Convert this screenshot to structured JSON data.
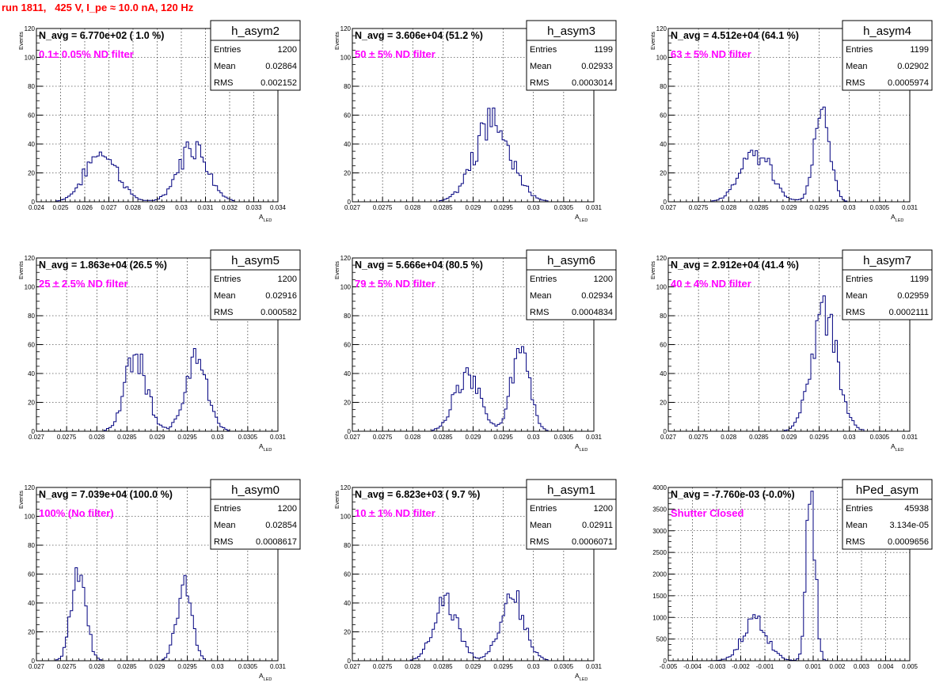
{
  "header": {
    "run_title": "run 1811,   425 V, I_pe ≈ 10.0 nA, 120 Hz"
  },
  "stats_labels": {
    "entries": "Entries",
    "mean": "Mean",
    "rms": "RMS"
  },
  "colors": {
    "title": "#ff0000",
    "filter_label": "#ff00ff",
    "hist_line": "#00007f",
    "grid": "#000000"
  },
  "chart_data": [
    {
      "type": "bar",
      "name": "h_asym2",
      "navg": "N_avg = 6.770e+02 ( 1.0 %)",
      "filter": "0.1± 0.05% ND filter",
      "entries": "1200",
      "mean": "0.02864",
      "rms": "0.002152",
      "ylabel": "Events",
      "xlabel": "A",
      "xlabel_sub": "LED",
      "xlim": [
        0.024,
        0.034
      ],
      "ylim": [
        0,
        120
      ],
      "grid": true,
      "xticks": [
        "0.024",
        "0.025",
        "0.026",
        "0.027",
        "0.028",
        "0.029",
        "0.03",
        "0.031",
        "0.032",
        "0.033",
        "0.034"
      ],
      "yticks": [
        "0",
        "20",
        "40",
        "60",
        "80",
        "100",
        "120"
      ],
      "peaks": [
        {
          "center": 0.0267,
          "sigma": 0.00065,
          "amplitude": 35
        },
        {
          "center": 0.0305,
          "sigma": 0.0006,
          "amplitude": 40
        }
      ]
    },
    {
      "type": "bar",
      "name": "h_asym3",
      "navg": "N_avg = 3.606e+04 (51.2 %)",
      "filter": " 50 ± 5% ND filter",
      "entries": "1199",
      "mean": "0.02933",
      "rms": "0.0003014",
      "ylabel": "Events",
      "xlabel": "A",
      "xlabel_sub": "LED",
      "xlim": [
        0.027,
        0.031
      ],
      "ylim": [
        0,
        120
      ],
      "grid": true,
      "xticks": [
        "0.027",
        "0.0275",
        "0.028",
        "0.0285",
        "0.029",
        "0.0295",
        "0.03",
        "0.0305",
        "0.031"
      ],
      "yticks": [
        "0",
        "20",
        "40",
        "60",
        "80",
        "100",
        "120"
      ],
      "peaks": [
        {
          "center": 0.02933,
          "sigma": 0.0003,
          "amplitude": 55
        }
      ]
    },
    {
      "type": "bar",
      "name": "h_asym4",
      "navg": "N_avg = 4.512e+04 (64.1 %)",
      "filter": " 63 ± 5% ND filter",
      "entries": "1199",
      "mean": "0.02902",
      "rms": "0.0005974",
      "ylabel": "Events",
      "xlabel": "A",
      "xlabel_sub": "LED",
      "xlim": [
        0.027,
        0.031
      ],
      "ylim": [
        0,
        120
      ],
      "grid": true,
      "xticks": [
        "0.027",
        "0.0275",
        "0.028",
        "0.0285",
        "0.029",
        "0.0295",
        "0.03",
        "0.0305",
        "0.031"
      ],
      "yticks": [
        "0",
        "20",
        "40",
        "60",
        "80",
        "100",
        "120"
      ],
      "peaks": [
        {
          "center": 0.02845,
          "sigma": 0.00025,
          "amplitude": 35
        },
        {
          "center": 0.02955,
          "sigma": 0.00013,
          "amplitude": 65
        }
      ]
    },
    {
      "type": "bar",
      "name": "h_asym5",
      "navg": "N_avg = 1.863e+04 (26.5 %)",
      "filter": " 25 ± 2.5% ND filter",
      "entries": "1200",
      "mean": "0.02916",
      "rms": "0.000582",
      "ylabel": "Events",
      "xlabel": "A",
      "xlabel_sub": "LED",
      "xlim": [
        0.027,
        0.031
      ],
      "ylim": [
        0,
        120
      ],
      "grid": true,
      "xticks": [
        "0.027",
        "0.0275",
        "0.028",
        "0.0285",
        "0.029",
        "0.0295",
        "0.03",
        "0.0305",
        "0.031"
      ],
      "yticks": [
        "0",
        "20",
        "40",
        "60",
        "80",
        "100",
        "120"
      ],
      "peaks": [
        {
          "center": 0.02865,
          "sigma": 0.00018,
          "amplitude": 50
        },
        {
          "center": 0.02965,
          "sigma": 0.00018,
          "amplitude": 50
        }
      ]
    },
    {
      "type": "bar",
      "name": "h_asym6",
      "navg": "N_avg = 5.666e+04 (80.5 %)",
      "filter": " 79 ± 5% ND filter",
      "entries": "1200",
      "mean": "0.02934",
      "rms": "0.0004834",
      "ylabel": "Events",
      "xlabel": "A",
      "xlabel_sub": "LED",
      "xlim": [
        0.027,
        0.031
      ],
      "ylim": [
        0,
        120
      ],
      "grid": true,
      "xticks": [
        "0.027",
        "0.0275",
        "0.028",
        "0.0285",
        "0.029",
        "0.0295",
        "0.03",
        "0.0305",
        "0.031"
      ],
      "yticks": [
        "0",
        "20",
        "40",
        "60",
        "80",
        "100",
        "120"
      ],
      "peaks": [
        {
          "center": 0.0289,
          "sigma": 0.0002,
          "amplitude": 42
        },
        {
          "center": 0.02978,
          "sigma": 0.00015,
          "amplitude": 57
        }
      ]
    },
    {
      "type": "bar",
      "name": "h_asym7",
      "navg": "N_avg = 2.912e+04 (41.4 %)",
      "filter": " 40 ± 4% ND filter",
      "entries": "1199",
      "mean": "0.02959",
      "rms": "0.0002111",
      "ylabel": "Events",
      "xlabel": "A",
      "xlabel_sub": "LED",
      "xlim": [
        0.027,
        0.031
      ],
      "ylim": [
        0,
        120
      ],
      "grid": true,
      "xticks": [
        "0.027",
        "0.0275",
        "0.028",
        "0.0285",
        "0.029",
        "0.0295",
        "0.03",
        "0.0305",
        "0.031"
      ],
      "yticks": [
        "0",
        "20",
        "40",
        "60",
        "80",
        "100",
        "120"
      ],
      "peaks": [
        {
          "center": 0.02959,
          "sigma": 0.00021,
          "amplitude": 85
        }
      ]
    },
    {
      "type": "bar",
      "name": "h_asym0",
      "navg": "N_avg = 7.039e+04 (100.0 %)",
      "filter": " 100% (No filter)",
      "entries": "1200",
      "mean": "0.02854",
      "rms": "0.0008617",
      "ylabel": "Events",
      "xlabel": "A",
      "xlabel_sub": "LED",
      "xlim": [
        0.027,
        0.031
      ],
      "ylim": [
        0,
        120
      ],
      "grid": true,
      "xticks": [
        "0.027",
        "0.0275",
        "0.028",
        "0.0285",
        "0.029",
        "0.0295",
        "0.03",
        "0.0305",
        "0.031"
      ],
      "yticks": [
        "0",
        "20",
        "40",
        "60",
        "80",
        "100",
        "120"
      ],
      "peaks": [
        {
          "center": 0.0277,
          "sigma": 0.00012,
          "amplitude": 58
        },
        {
          "center": 0.02945,
          "sigma": 0.00012,
          "amplitude": 55
        }
      ]
    },
    {
      "type": "bar",
      "name": "h_asym1",
      "navg": "N_avg = 6.823e+03 ( 9.7 %)",
      "filter": " 10 ± 1% ND filter",
      "entries": "1200",
      "mean": "0.02911",
      "rms": "0.0006071",
      "ylabel": "Events",
      "xlabel": "A",
      "xlabel_sub": "LED",
      "xlim": [
        0.027,
        0.031
      ],
      "ylim": [
        0,
        120
      ],
      "grid": true,
      "xticks": [
        "0.027",
        "0.0275",
        "0.028",
        "0.0285",
        "0.029",
        "0.0295",
        "0.03",
        "0.0305",
        "0.031"
      ],
      "yticks": [
        "0",
        "20",
        "40",
        "60",
        "80",
        "100",
        "120"
      ],
      "peaks": [
        {
          "center": 0.02855,
          "sigma": 0.0002,
          "amplitude": 42
        },
        {
          "center": 0.02965,
          "sigma": 0.0002,
          "amplitude": 42
        }
      ]
    },
    {
      "type": "bar",
      "name": "hPed_asym",
      "navg": "N_avg = -7.760e-03 (-0.0%)",
      "filter": "Shutter Closed",
      "entries": "45938",
      "mean": "3.134e-05",
      "rms": "0.0009656",
      "ylabel": "",
      "xlabel": "",
      "xlabel_sub": "",
      "xlim": [
        -0.005,
        0.005
      ],
      "ylim": [
        0,
        4000
      ],
      "grid": true,
      "xticks": [
        "-0.005",
        "-0.004",
        "-0.003",
        "-0.002",
        "-0.001",
        "0",
        "0.001",
        "0.002",
        "0.003",
        "0.004",
        "0.005"
      ],
      "yticks": [
        "0",
        "500",
        "1000",
        "1500",
        "2000",
        "2500",
        "3000",
        "3500",
        "4000"
      ],
      "peaks": [
        {
          "center": -0.0014,
          "sigma": 0.0005,
          "amplitude": 950
        },
        {
          "center": 0.0009,
          "sigma": 0.00018,
          "amplitude": 3900
        }
      ]
    }
  ]
}
